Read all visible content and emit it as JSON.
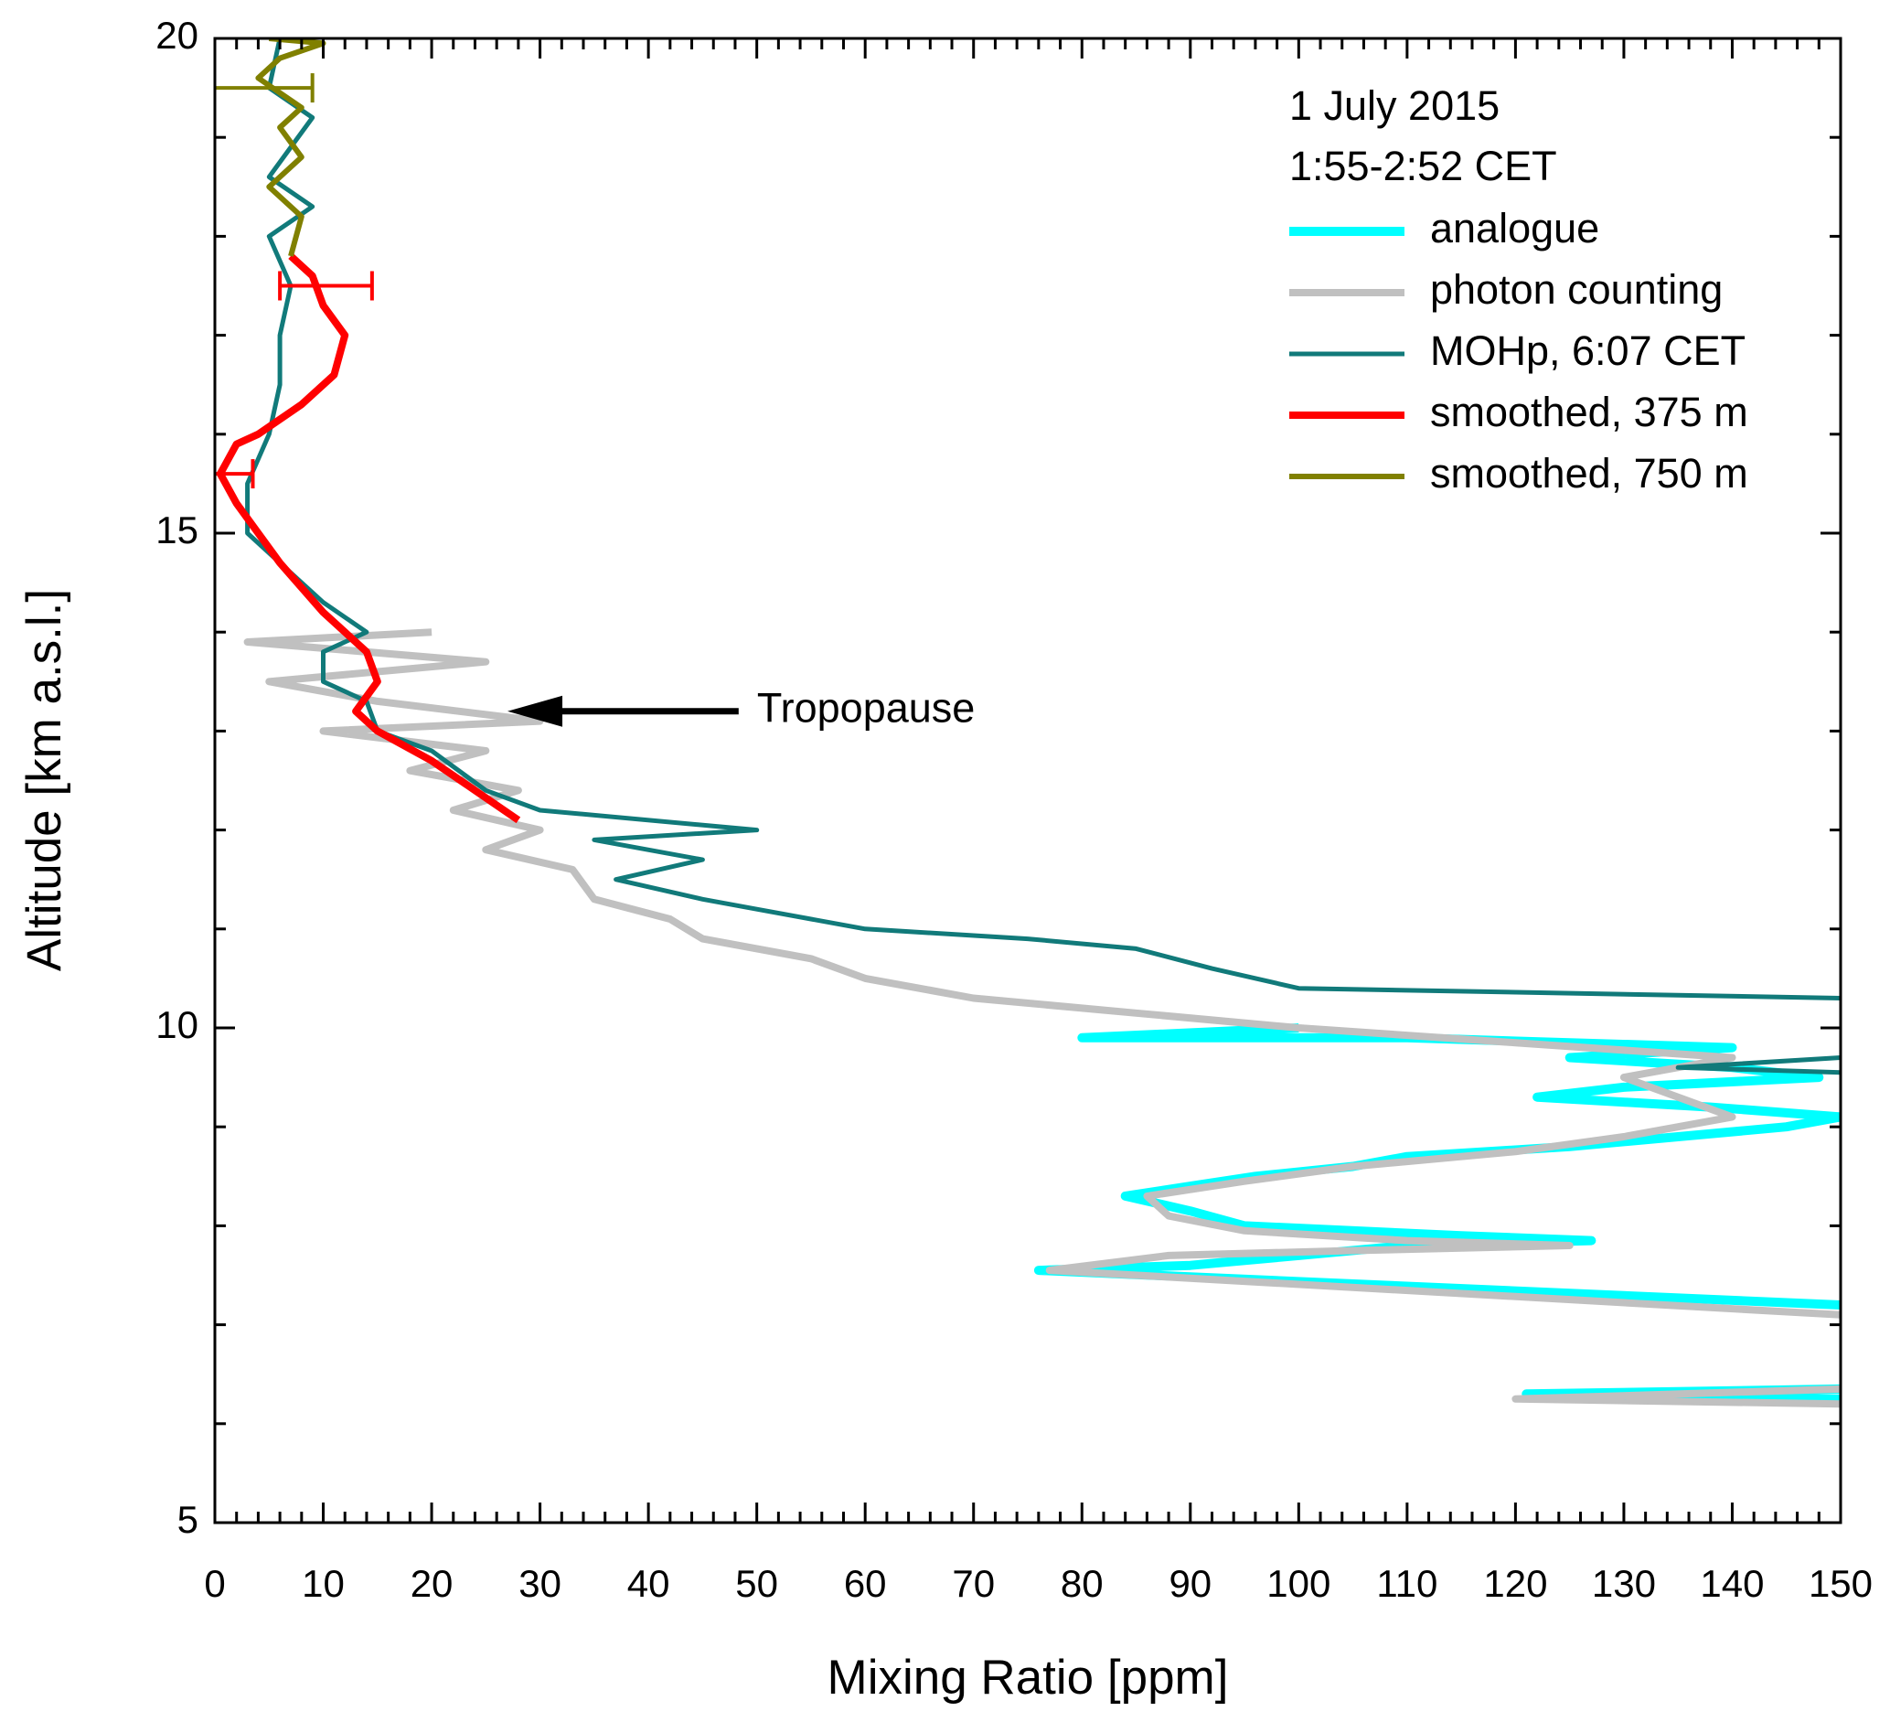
{
  "chart_data": {
    "type": "line",
    "xlabel": "Mixing Ratio [ppm]",
    "ylabel": "Altitude [km a.s.l.]",
    "xlim": [
      0,
      150
    ],
    "ylim": [
      5,
      20
    ],
    "xticks": [
      0,
      10,
      20,
      30,
      40,
      50,
      60,
      70,
      80,
      90,
      100,
      110,
      120,
      130,
      140,
      150
    ],
    "yticks": [
      5,
      10,
      15,
      20
    ],
    "xminorticks": [
      2,
      4,
      6,
      8,
      12,
      14,
      16,
      18,
      22,
      24,
      26,
      28,
      32,
      34,
      36,
      38,
      42,
      44,
      46,
      48,
      52,
      54,
      56,
      58,
      62,
      64,
      66,
      68,
      72,
      74,
      76,
      78,
      82,
      84,
      86,
      88,
      92,
      94,
      96,
      98,
      102,
      104,
      106,
      108,
      112,
      114,
      116,
      118,
      122,
      124,
      126,
      128,
      132,
      134,
      136,
      138,
      142,
      144,
      146,
      148
    ],
    "yminorticks": [
      6,
      7,
      8,
      9,
      11,
      12,
      13,
      14,
      16,
      17,
      18,
      19
    ],
    "legend_title": [
      "1 July 2015",
      "1:55-2:52 CET"
    ],
    "legend": "upper right",
    "annotations": [
      {
        "text": "Tropopause",
        "x": 49,
        "y": 13.2,
        "arrow_to": [
          27,
          13.2
        ]
      }
    ],
    "series": [
      {
        "name": "analogue",
        "color": "#00ffff",
        "width": 10,
        "x": [
          150,
          121,
          150,
          null,
          150,
          76,
          90,
          100,
          110,
          127,
          115,
          95,
          90,
          84,
          90,
          96,
          105,
          110,
          125,
          135,
          145,
          150,
          138,
          122,
          130,
          148,
          140,
          125,
          140,
          110,
          80,
          100
        ],
        "y": [
          6.25,
          6.3,
          6.35,
          null,
          7.2,
          7.55,
          7.6,
          7.7,
          7.8,
          7.85,
          7.9,
          8.0,
          8.15,
          8.3,
          8.4,
          8.5,
          8.6,
          8.7,
          8.8,
          8.9,
          9.0,
          9.1,
          9.2,
          9.3,
          9.4,
          9.5,
          9.6,
          9.7,
          9.8,
          9.9,
          9.9,
          10.0
        ]
      },
      {
        "name": "photon counting",
        "color": "#c0c0c0",
        "width": 8,
        "x": [
          150,
          120,
          150,
          null,
          150,
          77,
          88,
          105,
          125,
          110,
          95,
          88,
          86,
          95,
          105,
          120,
          130,
          140,
          135,
          130,
          140,
          120,
          100,
          85,
          70,
          60,
          55,
          45,
          42,
          35,
          33,
          25,
          30,
          22,
          28,
          18,
          25,
          10,
          30,
          15,
          5,
          25,
          3,
          20
        ],
        "y": [
          6.2,
          6.25,
          6.35,
          null,
          7.1,
          7.55,
          7.7,
          7.75,
          7.8,
          7.85,
          7.95,
          8.1,
          8.3,
          8.45,
          8.6,
          8.75,
          8.9,
          9.1,
          9.3,
          9.5,
          9.7,
          9.85,
          10.0,
          10.15,
          10.3,
          10.5,
          10.7,
          10.9,
          11.1,
          11.3,
          11.6,
          11.8,
          12.0,
          12.2,
          12.4,
          12.6,
          12.8,
          13.0,
          13.1,
          13.3,
          13.5,
          13.7,
          13.9,
          14.0
        ]
      },
      {
        "name": "MOHp, 6:07 CET",
        "color": "#117a7a",
        "width": 5,
        "x": [
          6,
          5,
          9,
          5,
          9,
          5,
          7,
          6,
          6,
          5,
          3,
          3,
          6,
          10,
          14,
          10,
          10,
          14,
          15,
          20,
          25,
          30,
          50,
          35,
          45,
          37,
          45,
          50,
          60,
          75,
          85,
          92,
          100,
          150,
          null,
          150,
          135,
          150
        ],
        "y": [
          20,
          19.5,
          19.2,
          18.6,
          18.3,
          18.0,
          17.5,
          17.0,
          16.5,
          16.0,
          15.5,
          15.0,
          14.7,
          14.3,
          14.0,
          13.8,
          13.5,
          13.3,
          13.0,
          12.8,
          12.4,
          12.2,
          12.0,
          11.9,
          11.7,
          11.5,
          11.3,
          11.2,
          11.0,
          10.9,
          10.8,
          10.6,
          10.4,
          10.3,
          null,
          9.7,
          9.6,
          9.55
        ]
      },
      {
        "name": "smoothed, 375 m",
        "color": "#ff0000",
        "width": 8,
        "x": [
          28,
          24,
          20,
          15,
          13,
          15,
          14,
          10,
          6,
          4,
          2,
          0.5,
          2,
          4,
          8,
          11,
          12,
          10,
          9,
          7
        ],
        "y": [
          12.1,
          12.4,
          12.7,
          13.0,
          13.2,
          13.5,
          13.8,
          14.2,
          14.7,
          15.0,
          15.3,
          15.6,
          15.9,
          16.0,
          16.3,
          16.6,
          17.0,
          17.3,
          17.6,
          17.8
        ],
        "error_bars": [
          {
            "x": 10.25,
            "y": 17.5,
            "xerr": 4.25
          },
          {
            "x": 1.5,
            "y": 15.6,
            "xerr": 2
          }
        ]
      },
      {
        "name": "smoothed, 750 m",
        "color": "#808000",
        "width": 6,
        "x": [
          7,
          8,
          5,
          8,
          6,
          8,
          4,
          6,
          10,
          5
        ],
        "y": [
          17.8,
          18.2,
          18.5,
          18.8,
          19.1,
          19.3,
          19.6,
          19.8,
          19.95,
          20
        ],
        "error_bars": [
          {
            "x": 4.3,
            "y": 19.5,
            "xerr": 4.7
          }
        ]
      }
    ]
  }
}
